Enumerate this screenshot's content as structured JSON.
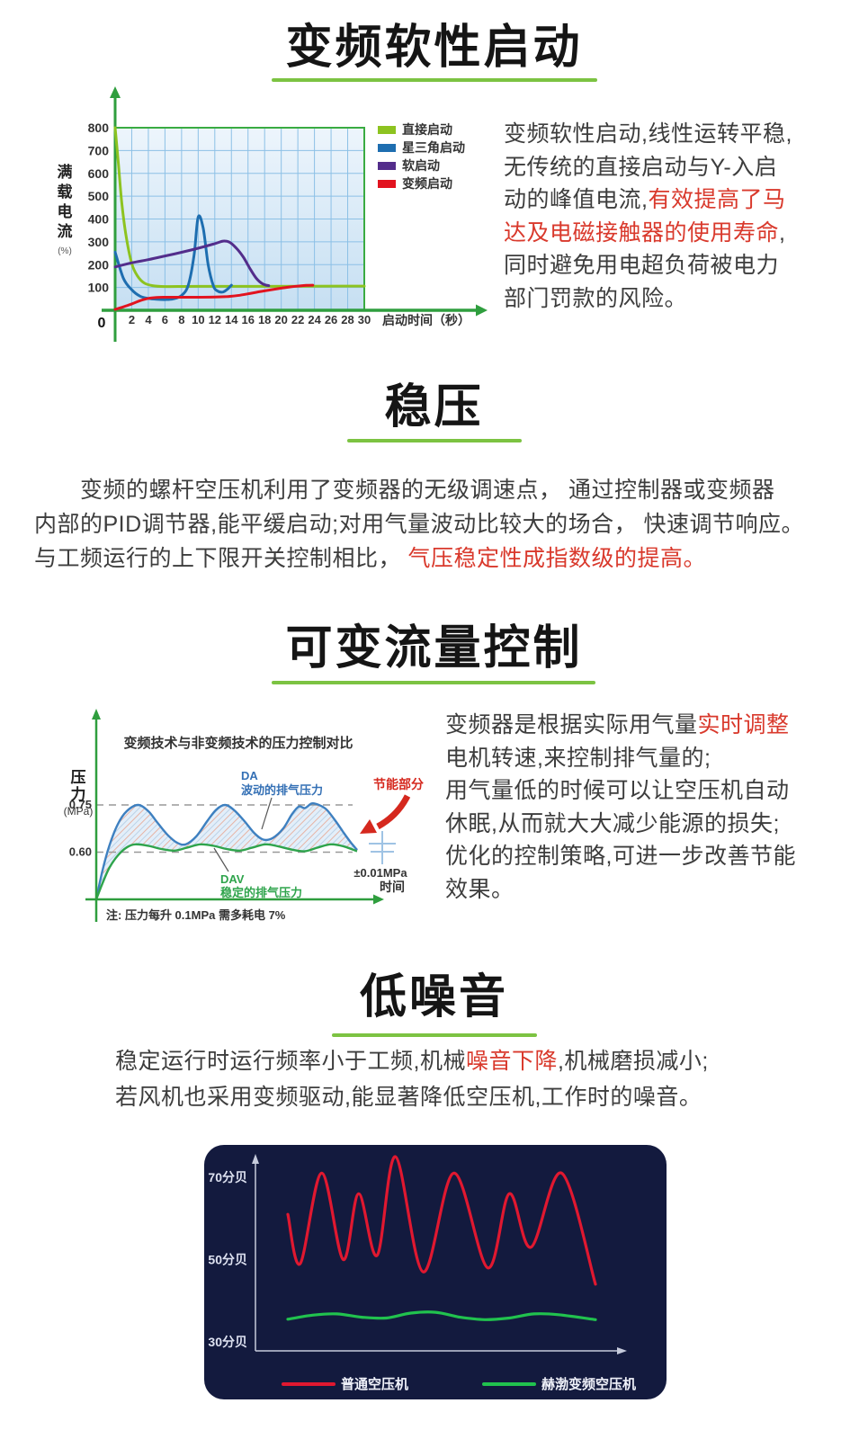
{
  "colors": {
    "accent_green": "#7cc342",
    "axis_green": "#2f9e3e",
    "plot_border_green": "#3aab42",
    "red_text": "#d9392c",
    "noise_panel_bg": "#131a3e",
    "grid_blue": "#8cc0e6"
  },
  "sections": {
    "soft_start": {
      "title": "变频软性启动",
      "lines": [
        [
          {
            "t": "变频软性启动,线性运转平稳,"
          }
        ],
        [
          {
            "t": "无传统的直接启动与Y-入启"
          }
        ],
        [
          {
            "t": "动的峰值电流,"
          },
          {
            "t": "有效提高了马",
            "red": true
          }
        ],
        [
          {
            "t": "达及电磁接触器的使用寿命",
            "red": true
          },
          {
            "t": ","
          }
        ],
        [
          {
            "t": "同时避免用电超负荷被电力"
          }
        ],
        [
          {
            "t": "部门罚款的风险。"
          }
        ]
      ]
    },
    "stable_pressure": {
      "title": "稳压",
      "lines": [
        [
          {
            "t": "　　变频的螺杆空压机利用了变频器的无级调速点， 通过控制器或变频器"
          }
        ],
        [
          {
            "t": "内部的PID调节器,能平缓启动;对用气量波动比较大的场合， 快速调节响应。"
          }
        ],
        [
          {
            "t": "与工频运行的上下限开关控制相比， "
          },
          {
            "t": "气压稳定性成指数级的提高。",
            "red": true
          }
        ]
      ]
    },
    "flow_control": {
      "title": "可变流量控制",
      "lines": [
        [
          {
            "t": "变频器是根据实际用气量"
          },
          {
            "t": "实时调整",
            "red": true
          }
        ],
        [
          {
            "t": "电机转速,来控制排气量的;"
          }
        ],
        [
          {
            "t": "用气量低的时候可以让空压机自动"
          }
        ],
        [
          {
            "t": "休眠,从而就大大减少能源的损失;"
          }
        ],
        [
          {
            "t": "优化的控制策略,可进一步改善节能"
          }
        ],
        [
          {
            "t": "效果。"
          }
        ]
      ]
    },
    "low_noise": {
      "title": "低噪音",
      "lines": [
        [
          {
            "t": "稳定运行时运行频率小于工频,机械"
          },
          {
            "t": "噪音下降",
            "red": true
          },
          {
            "t": ",机械磨损减小;"
          }
        ],
        [
          {
            "t": "若风机也采用变频驱动,能显著降低空压机,工作时的噪音。"
          }
        ]
      ]
    }
  },
  "chart_data": [
    {
      "id": "startup-current",
      "type": "line",
      "title": "",
      "ylabel": "满载电流",
      "ylabel_unit": "(%)",
      "xlabel": "启动时间（秒）",
      "origin_label": "0",
      "xlim": [
        0,
        30
      ],
      "ylim": [
        0,
        800
      ],
      "x_ticks": [
        2,
        4,
        6,
        8,
        10,
        12,
        14,
        16,
        18,
        20,
        22,
        24,
        26,
        28,
        30
      ],
      "y_ticks": [
        100,
        200,
        300,
        400,
        500,
        600,
        700,
        800
      ],
      "grid": true,
      "legend_position": "right-top",
      "series": [
        {
          "name": "直接启动",
          "color": "#8dc320",
          "points": [
            [
              0,
              800
            ],
            [
              0.4,
              640
            ],
            [
              0.8,
              470
            ],
            [
              1.3,
              330
            ],
            [
              2,
              205
            ],
            [
              2.7,
              150
            ],
            [
              3.5,
              120
            ],
            [
              4.5,
              108
            ],
            [
              6,
              104
            ],
            [
              10,
              105
            ],
            [
              18,
              105
            ],
            [
              30,
              106
            ]
          ]
        },
        {
          "name": "星三角启动",
          "color": "#1e6eb0",
          "points": [
            [
              0,
              255
            ],
            [
              1,
              140
            ],
            [
              2,
              90
            ],
            [
              3,
              62
            ],
            [
              4,
              52
            ],
            [
              5,
              48
            ],
            [
              6,
              47
            ],
            [
              7,
              50
            ],
            [
              8,
              65
            ],
            [
              8.8,
              110
            ],
            [
              9.5,
              240
            ],
            [
              10,
              408
            ],
            [
              10.6,
              360
            ],
            [
              11.2,
              200
            ],
            [
              11.8,
              110
            ],
            [
              12.3,
              85
            ],
            [
              13,
              80
            ],
            [
              13.6,
              95
            ],
            [
              14,
              110
            ]
          ]
        },
        {
          "name": "软启动",
          "color": "#532d8b",
          "points": [
            [
              0,
              190
            ],
            [
              2,
              208
            ],
            [
              4,
              222
            ],
            [
              6,
              238
            ],
            [
              8,
              254
            ],
            [
              10,
              272
            ],
            [
              12,
              292
            ],
            [
              13,
              303
            ],
            [
              13.8,
              298
            ],
            [
              14.6,
              272
            ],
            [
              15.4,
              235
            ],
            [
              16.2,
              185
            ],
            [
              17,
              140
            ],
            [
              17.8,
              115
            ],
            [
              18.5,
              108
            ]
          ]
        },
        {
          "name": "变频启动",
          "color": "#e2131f",
          "points": [
            [
              0,
              4
            ],
            [
              1,
              15
            ],
            [
              2,
              28
            ],
            [
              3,
              42
            ],
            [
              4,
              52
            ],
            [
              5,
              56
            ],
            [
              6,
              57
            ],
            [
              8,
              57
            ],
            [
              10,
              57
            ],
            [
              12,
              58
            ],
            [
              13.5,
              60
            ],
            [
              15,
              66
            ],
            [
              16,
              72
            ],
            [
              17,
              79
            ],
            [
              18,
              85
            ],
            [
              19,
              91
            ],
            [
              20,
              97
            ],
            [
              21,
              102
            ],
            [
              22,
              106
            ],
            [
              23,
              109
            ],
            [
              23.8,
              110
            ]
          ]
        }
      ]
    },
    {
      "id": "pressure-control",
      "type": "area",
      "title": "变频技术与非变频技术的压力控制对比",
      "ylabel": "压力",
      "ylabel_unit": "(MPa)",
      "xlabel": "时间",
      "y_ticks": [
        0.75,
        0.6
      ],
      "saving_label": "节能部分",
      "tolerance": "±0.01MPa",
      "note": "注: 压力每升 0.1MPa 需多耗电 7%",
      "series": [
        {
          "name": "DA",
          "desc": "波动的排气压力",
          "color": "#3e80c0",
          "points": [
            [
              0,
              0.45
            ],
            [
              0.7,
              0.54
            ],
            [
              1.5,
              0.62
            ],
            [
              2.5,
              0.69
            ],
            [
              3.5,
              0.73
            ],
            [
              4.8,
              0.75
            ],
            [
              6,
              0.73
            ],
            [
              7,
              0.695
            ],
            [
              8.2,
              0.655
            ],
            [
              9.3,
              0.63
            ],
            [
              10.3,
              0.625
            ],
            [
              11.5,
              0.65
            ],
            [
              12.8,
              0.7
            ],
            [
              13.8,
              0.735
            ],
            [
              14.8,
              0.75
            ],
            [
              15.8,
              0.735
            ],
            [
              17,
              0.7
            ],
            [
              18.2,
              0.66
            ],
            [
              19.2,
              0.64
            ],
            [
              20.3,
              0.645
            ],
            [
              21.5,
              0.675
            ],
            [
              22.5,
              0.72
            ],
            [
              23.3,
              0.745
            ],
            [
              24,
              0.74
            ],
            [
              24.8,
              0.755
            ],
            [
              25.6,
              0.75
            ],
            [
              26.5,
              0.735
            ],
            [
              27.5,
              0.7
            ],
            [
              28.5,
              0.66
            ],
            [
              29.3,
              0.63
            ],
            [
              30,
              0.607
            ]
          ]
        },
        {
          "name": "DAV",
          "desc": "稳定的排气压力",
          "color": "#2fa44c",
          "points": [
            [
              0,
              0.45
            ],
            [
              0.7,
              0.5
            ],
            [
              1.5,
              0.55
            ],
            [
              2.5,
              0.59
            ],
            [
              3.5,
              0.615
            ],
            [
              4.5,
              0.625
            ],
            [
              6,
              0.62
            ],
            [
              7.5,
              0.61
            ],
            [
              9,
              0.605
            ],
            [
              10.5,
              0.615
            ],
            [
              12,
              0.625
            ],
            [
              13.5,
              0.62
            ],
            [
              15,
              0.61
            ],
            [
              16.5,
              0.605
            ],
            [
              18,
              0.615
            ],
            [
              19.5,
              0.625
            ],
            [
              21,
              0.618
            ],
            [
              22.5,
              0.608
            ],
            [
              24,
              0.603
            ],
            [
              25.5,
              0.615
            ],
            [
              27,
              0.625
            ],
            [
              28.5,
              0.618
            ],
            [
              30,
              0.603
            ]
          ]
        }
      ]
    },
    {
      "id": "noise-comparison",
      "type": "line",
      "panel_bg": "#131a3e",
      "y_ticks": [
        {
          "label": "70分贝",
          "value": 70
        },
        {
          "label": "50分贝",
          "value": 50
        },
        {
          "label": "30分贝",
          "value": 30
        }
      ],
      "series": [
        {
          "name": "普通空压机",
          "color": "#e01830",
          "points": [
            [
              0,
              61
            ],
            [
              4,
              49
            ],
            [
              11,
              71
            ],
            [
              18,
              50
            ],
            [
              23,
              66
            ],
            [
              29,
              51
            ],
            [
              35,
              75
            ],
            [
              44,
              47
            ],
            [
              54,
              71
            ],
            [
              65,
              48
            ],
            [
              72,
              66
            ],
            [
              79,
              53
            ],
            [
              89,
              71
            ],
            [
              100,
              44
            ]
          ]
        },
        {
          "name": "赫渤变频空压机",
          "color": "#21c24e",
          "points": [
            [
              0,
              35.5
            ],
            [
              8,
              36.5
            ],
            [
              16,
              36.8
            ],
            [
              24,
              36
            ],
            [
              32,
              35.8
            ],
            [
              40,
              37
            ],
            [
              48,
              37.2
            ],
            [
              56,
              36
            ],
            [
              64,
              35.4
            ],
            [
              72,
              35.8
            ],
            [
              80,
              36.8
            ],
            [
              88,
              36.6
            ],
            [
              100,
              35.4
            ]
          ]
        }
      ]
    }
  ]
}
